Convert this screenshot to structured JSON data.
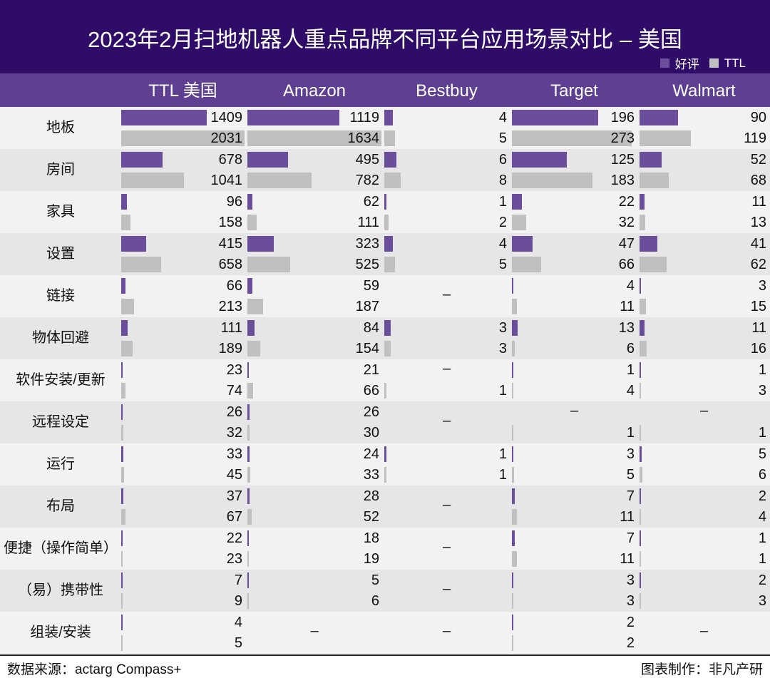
{
  "chart_data": {
    "type": "bar",
    "orientation": "horizontal",
    "title": "2023年2月扫地机器人重点品牌不同平台应用场景对比 – 美国",
    "legend": {
      "position": "top-right",
      "entries": [
        {
          "name": "好评",
          "color": "#6b4e9b"
        },
        {
          "name": "TTL",
          "color": "#c0c0c0"
        }
      ]
    },
    "platforms": [
      "TTL 美国",
      "Amazon",
      "Bestbuy",
      "Target",
      "Walmart"
    ],
    "categories": [
      "地板",
      "房间",
      "家具",
      "设置",
      "链接",
      "物体回避",
      "软件安装/更新",
      "远程设定",
      "运行",
      "布局",
      "便捷（操作简单）",
      "（易）携带性",
      "组装/安装"
    ],
    "missing_marker": "–",
    "series": [
      {
        "name": "好评",
        "values": {
          "TTL 美国": [
            1409,
            678,
            96,
            415,
            66,
            111,
            23,
            26,
            33,
            37,
            22,
            7,
            4
          ],
          "Amazon": [
            1119,
            495,
            62,
            323,
            59,
            84,
            21,
            26,
            24,
            28,
            18,
            5,
            null
          ],
          "Bestbuy": [
            4,
            6,
            1,
            4,
            null,
            3,
            null,
            null,
            1,
            null,
            null,
            null,
            null
          ],
          "Target": [
            196,
            125,
            22,
            47,
            4,
            13,
            1,
            null,
            3,
            7,
            7,
            3,
            2
          ],
          "Walmart": [
            90,
            52,
            11,
            41,
            3,
            11,
            1,
            null,
            5,
            2,
            1,
            2,
            null
          ]
        }
      },
      {
        "name": "TTL",
        "values": {
          "TTL 美国": [
            2031,
            1041,
            158,
            658,
            213,
            189,
            74,
            32,
            45,
            67,
            23,
            9,
            5
          ],
          "Amazon": [
            1634,
            782,
            111,
            525,
            187,
            154,
            66,
            30,
            33,
            52,
            19,
            6,
            null
          ],
          "Bestbuy": [
            5,
            8,
            2,
            5,
            null,
            3,
            1,
            null,
            1,
            null,
            null,
            null,
            null
          ],
          "Target": [
            273,
            183,
            32,
            66,
            11,
            6,
            4,
            1,
            5,
            11,
            11,
            3,
            2
          ],
          "Walmart": [
            119,
            68,
            13,
            62,
            15,
            16,
            3,
            1,
            6,
            4,
            1,
            3,
            null
          ]
        }
      }
    ]
  },
  "footer": {
    "source": "数据来源：actarg Compass+",
    "maker": "图表制作：非凡产研"
  },
  "colors": {
    "title_bg": "#2f0c68",
    "header_bg": "#5f3f92",
    "good": "#6b4e9b",
    "ttl": "#c0c0c0"
  }
}
